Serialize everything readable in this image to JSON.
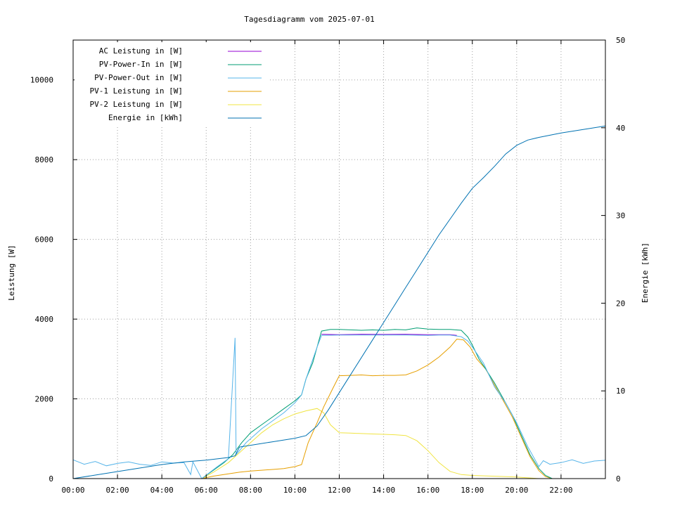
{
  "chart_data": {
    "type": "line",
    "title": "Tagesdiagramm vom 2025-07-01",
    "ylabel": "Leistung [W]",
    "y2label": "Energie [kWh]",
    "xlim": [
      0,
      24
    ],
    "ylim": [
      0,
      11000
    ],
    "y2lim": [
      0,
      50
    ],
    "grid": true,
    "legend_position": "top-left",
    "x_ticks": [
      {
        "value": 0,
        "label": "00:00"
      },
      {
        "value": 2,
        "label": "02:00"
      },
      {
        "value": 4,
        "label": "04:00"
      },
      {
        "value": 6,
        "label": "06:00"
      },
      {
        "value": 8,
        "label": "08:00"
      },
      {
        "value": 10,
        "label": "10:00"
      },
      {
        "value": 12,
        "label": "12:00"
      },
      {
        "value": 14,
        "label": "14:00"
      },
      {
        "value": 16,
        "label": "16:00"
      },
      {
        "value": 18,
        "label": "18:00"
      },
      {
        "value": 20,
        "label": "20:00"
      },
      {
        "value": 22,
        "label": "22:00"
      }
    ],
    "y_ticks": [
      {
        "value": 0,
        "label": "0"
      },
      {
        "value": 2000,
        "label": "2000"
      },
      {
        "value": 4000,
        "label": "4000"
      },
      {
        "value": 6000,
        "label": "6000"
      },
      {
        "value": 8000,
        "label": "8000"
      },
      {
        "value": 10000,
        "label": "10000"
      }
    ],
    "y2_ticks": [
      {
        "value": 0,
        "label": "0"
      },
      {
        "value": 10,
        "label": "10"
      },
      {
        "value": 20,
        "label": "20"
      },
      {
        "value": 30,
        "label": "30"
      },
      {
        "value": 40,
        "label": "40"
      },
      {
        "value": 50,
        "label": "50"
      }
    ],
    "series": [
      {
        "name": "AC Leistung in [W]",
        "color": "#9400d3",
        "axis": "y",
        "points": [
          [
            11.2,
            3620
          ],
          [
            12,
            3610
          ],
          [
            13,
            3620
          ],
          [
            14,
            3615
          ],
          [
            15,
            3620
          ],
          [
            16,
            3610
          ],
          [
            17,
            3610
          ],
          [
            17.3,
            3590
          ]
        ]
      },
      {
        "name": "PV-Power-In in [W]",
        "color": "#009e73",
        "axis": "y",
        "points": [
          [
            0,
            0
          ],
          [
            5.8,
            0
          ],
          [
            6.3,
            200
          ],
          [
            6.8,
            400
          ],
          [
            7.2,
            600
          ],
          [
            7.6,
            900
          ],
          [
            8,
            1150
          ],
          [
            8.5,
            1350
          ],
          [
            9,
            1550
          ],
          [
            9.5,
            1750
          ],
          [
            10,
            1950
          ],
          [
            10.3,
            2100
          ],
          [
            10.5,
            2500
          ],
          [
            10.8,
            2900
          ],
          [
            11.0,
            3300
          ],
          [
            11.2,
            3700
          ],
          [
            11.6,
            3740
          ],
          [
            12,
            3740
          ],
          [
            12.5,
            3730
          ],
          [
            13,
            3720
          ],
          [
            13.5,
            3730
          ],
          [
            14,
            3720
          ],
          [
            14.5,
            3740
          ],
          [
            15,
            3730
          ],
          [
            15.5,
            3780
          ],
          [
            16,
            3750
          ],
          [
            16.5,
            3740
          ],
          [
            17,
            3740
          ],
          [
            17.5,
            3720
          ],
          [
            17.8,
            3550
          ],
          [
            18,
            3350
          ],
          [
            18.3,
            3000
          ],
          [
            18.6,
            2750
          ],
          [
            19,
            2400
          ],
          [
            19.4,
            2000
          ],
          [
            19.8,
            1600
          ],
          [
            20.2,
            1100
          ],
          [
            20.6,
            600
          ],
          [
            21,
            250
          ],
          [
            21.3,
            80
          ],
          [
            21.6,
            0
          ],
          [
            24,
            0
          ]
        ]
      },
      {
        "name": "PV-Power-Out in [W]",
        "color": "#56b4e9",
        "axis": "y",
        "points": [
          [
            0,
            470
          ],
          [
            0.5,
            360
          ],
          [
            1,
            430
          ],
          [
            1.5,
            320
          ],
          [
            2,
            380
          ],
          [
            2.5,
            420
          ],
          [
            3,
            360
          ],
          [
            3.5,
            330
          ],
          [
            4,
            420
          ],
          [
            4.5,
            390
          ],
          [
            5,
            400
          ],
          [
            5.3,
            100
          ],
          [
            5.4,
            420
          ],
          [
            5.8,
            0
          ],
          [
            6.5,
            300
          ],
          [
            7.0,
            500
          ],
          [
            7.3,
            3530
          ],
          [
            7.35,
            600
          ],
          [
            7.8,
            900
          ],
          [
            8.5,
            1250
          ],
          [
            9.5,
            1650
          ],
          [
            10,
            1900
          ],
          [
            10.3,
            2100
          ],
          [
            10.5,
            2500
          ],
          [
            11.0,
            3300
          ],
          [
            11.2,
            3590
          ],
          [
            12,
            3600
          ],
          [
            13,
            3600
          ],
          [
            14,
            3600
          ],
          [
            15,
            3600
          ],
          [
            16,
            3590
          ],
          [
            16.5,
            3600
          ],
          [
            17,
            3600
          ],
          [
            17.5,
            3560
          ],
          [
            17.8,
            3450
          ],
          [
            18,
            3300
          ],
          [
            18.5,
            2900
          ],
          [
            19,
            2300
          ],
          [
            19.5,
            1900
          ],
          [
            20,
            1400
          ],
          [
            20.5,
            800
          ],
          [
            21,
            300
          ],
          [
            21.2,
            450
          ],
          [
            21.5,
            360
          ],
          [
            22,
            400
          ],
          [
            22.5,
            470
          ],
          [
            23,
            380
          ],
          [
            23.5,
            440
          ],
          [
            24,
            460
          ]
        ]
      },
      {
        "name": "PV-1 Leistung in [W]",
        "color": "#e69f00",
        "axis": "y",
        "points": [
          [
            0,
            0
          ],
          [
            5.8,
            0
          ],
          [
            6.3,
            60
          ],
          [
            7,
            120
          ],
          [
            7.5,
            160
          ],
          [
            8,
            190
          ],
          [
            8.5,
            210
          ],
          [
            9,
            230
          ],
          [
            9.5,
            250
          ],
          [
            10,
            300
          ],
          [
            10.3,
            350
          ],
          [
            10.6,
            900
          ],
          [
            11,
            1400
          ],
          [
            11.3,
            1800
          ],
          [
            11.7,
            2250
          ],
          [
            12,
            2580
          ],
          [
            12.5,
            2590
          ],
          [
            13,
            2600
          ],
          [
            13.5,
            2580
          ],
          [
            14,
            2590
          ],
          [
            14.5,
            2590
          ],
          [
            15,
            2600
          ],
          [
            15.5,
            2700
          ],
          [
            16,
            2850
          ],
          [
            16.5,
            3050
          ],
          [
            17,
            3300
          ],
          [
            17.3,
            3500
          ],
          [
            17.6,
            3480
          ],
          [
            17.9,
            3300
          ],
          [
            18.2,
            3000
          ],
          [
            18.6,
            2750
          ],
          [
            19,
            2350
          ],
          [
            19.4,
            1950
          ],
          [
            19.8,
            1550
          ],
          [
            20.2,
            1050
          ],
          [
            20.6,
            550
          ],
          [
            21,
            200
          ],
          [
            21.3,
            50
          ],
          [
            21.6,
            0
          ],
          [
            24,
            0
          ]
        ]
      },
      {
        "name": "PV-2 Leistung in [W]",
        "color": "#f0e442",
        "axis": "y",
        "points": [
          [
            0,
            0
          ],
          [
            5.8,
            0
          ],
          [
            6.3,
            150
          ],
          [
            7,
            400
          ],
          [
            7.5,
            650
          ],
          [
            8,
            900
          ],
          [
            8.5,
            1150
          ],
          [
            9,
            1350
          ],
          [
            9.5,
            1500
          ],
          [
            10,
            1620
          ],
          [
            10.5,
            1700
          ],
          [
            11,
            1760
          ],
          [
            11.3,
            1650
          ],
          [
            11.6,
            1350
          ],
          [
            12,
            1150
          ],
          [
            12.5,
            1140
          ],
          [
            13,
            1130
          ],
          [
            13.5,
            1120
          ],
          [
            14,
            1110
          ],
          [
            14.5,
            1100
          ],
          [
            15,
            1080
          ],
          [
            15.5,
            950
          ],
          [
            16,
            700
          ],
          [
            16.5,
            400
          ],
          [
            17,
            180
          ],
          [
            17.5,
            100
          ],
          [
            18,
            80
          ],
          [
            19,
            60
          ],
          [
            20,
            40
          ],
          [
            20.5,
            20
          ],
          [
            21,
            0
          ],
          [
            24,
            0
          ]
        ]
      },
      {
        "name": "Energie in [kWh]",
        "color": "#0072b2",
        "axis": "y2",
        "points": [
          [
            0,
            0
          ],
          [
            1,
            0.4
          ],
          [
            2,
            0.8
          ],
          [
            3,
            1.2
          ],
          [
            4,
            1.6
          ],
          [
            5,
            1.9
          ],
          [
            6,
            2.1
          ],
          [
            7,
            2.4
          ],
          [
            7.3,
            2.6
          ],
          [
            7.5,
            3.6
          ],
          [
            8,
            3.8
          ],
          [
            9,
            4.2
          ],
          [
            10,
            4.6
          ],
          [
            10.5,
            4.9
          ],
          [
            11,
            6.0
          ],
          [
            11.5,
            7.8
          ],
          [
            12,
            9.8
          ],
          [
            12.5,
            11.8
          ],
          [
            13,
            13.8
          ],
          [
            13.5,
            15.8
          ],
          [
            14,
            17.8
          ],
          [
            14.5,
            19.8
          ],
          [
            15,
            21.8
          ],
          [
            15.5,
            23.8
          ],
          [
            16,
            25.8
          ],
          [
            16.5,
            27.8
          ],
          [
            17,
            29.6
          ],
          [
            17.5,
            31.4
          ],
          [
            18,
            33.1
          ],
          [
            18.5,
            34.3
          ],
          [
            19,
            35.6
          ],
          [
            19.5,
            37.0
          ],
          [
            20,
            38.0
          ],
          [
            20.5,
            38.6
          ],
          [
            21,
            38.9
          ],
          [
            22,
            39.4
          ],
          [
            23,
            39.8
          ],
          [
            24,
            40.2
          ]
        ]
      }
    ]
  }
}
